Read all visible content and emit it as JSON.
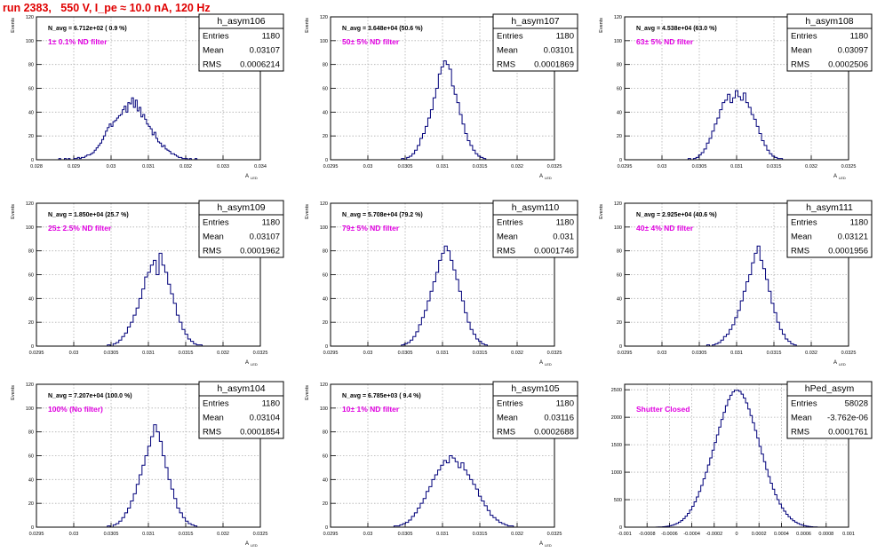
{
  "page_title": "run 2383,   550 V, I_pe ≈ 10.0 nA, 120 Hz",
  "colors": {
    "histogram": "#00007a",
    "annotation": "#e000e0",
    "title": "#e00000",
    "grid": "#b0b0b0"
  },
  "chart_data": [
    {
      "type": "bar",
      "name": "h_asym106",
      "stats": {
        "entries": "1180",
        "mean": "0.03107",
        "rms": "0.0006214"
      },
      "stat_labels": [
        "Entries",
        "Mean",
        "RMS"
      ],
      "navg": "N_avg = 6.712e+02 ( 0.9 %)",
      "filter": "1± 0.1% ND filter",
      "ylabel": "Events",
      "xlabel": "A",
      "xlabel_sub": "LED",
      "xlim": [
        0.028,
        0.034
      ],
      "ylim": [
        0,
        120
      ],
      "xticks": [
        "0.028",
        "0.029",
        "0.03",
        "0.031",
        "0.032",
        "0.033",
        "0.034"
      ],
      "yticks": [
        "0",
        "20",
        "40",
        "60",
        "80",
        "100",
        "120"
      ],
      "x_range": [
        0.0286,
        0.0326
      ],
      "bin_values": [
        1,
        0,
        0,
        1,
        0,
        1,
        0,
        0,
        1,
        1,
        2,
        1,
        2,
        2,
        3,
        4,
        4,
        5,
        6,
        8,
        10,
        12,
        14,
        17,
        20,
        24,
        27,
        30,
        28,
        32,
        33,
        35,
        37,
        38,
        42,
        45,
        40,
        48,
        47,
        52,
        44,
        50,
        41,
        44,
        36,
        38,
        34,
        30,
        28,
        26,
        21,
        23,
        18,
        15,
        14,
        11,
        12,
        9,
        8,
        7,
        5,
        5,
        4,
        3,
        2,
        2,
        1,
        1,
        1,
        0,
        1,
        0,
        0,
        1,
        0,
        0,
        0,
        0,
        0,
        0
      ]
    },
    {
      "type": "bar",
      "name": "h_asym107",
      "stats": {
        "entries": "1180",
        "mean": "0.03101",
        "rms": "0.0001869"
      },
      "stat_labels": [
        "Entries",
        "Mean",
        "RMS"
      ],
      "navg": "N_avg = 3.648e+04 (50.6 %)",
      "filter": "50± 5% ND filter",
      "ylabel": "Events",
      "xlabel": "A",
      "xlabel_sub": "LED",
      "xlim": [
        0.0295,
        0.0325
      ],
      "ylim": [
        0,
        120
      ],
      "xticks": [
        "0.0295",
        "0.03",
        "0.0305",
        "0.031",
        "0.0315",
        "0.032",
        "0.0325"
      ],
      "yticks": [
        "0",
        "20",
        "40",
        "60",
        "80",
        "100",
        "120"
      ],
      "x_range": [
        0.03045,
        0.03158
      ],
      "bin_values": [
        1,
        0,
        2,
        3,
        5,
        8,
        12,
        18,
        22,
        28,
        35,
        42,
        52,
        60,
        72,
        78,
        83,
        80,
        76,
        62,
        55,
        48,
        38,
        30,
        22,
        16,
        12,
        8,
        5,
        3,
        2,
        1
      ]
    },
    {
      "type": "bar",
      "name": "h_asym108",
      "stats": {
        "entries": "1180",
        "mean": "0.03097",
        "rms": "0.0002506"
      },
      "stat_labels": [
        "Entries",
        "Mean",
        "RMS"
      ],
      "navg": "N_avg = 4.538e+04 (63.0 %)",
      "filter": "63± 5% ND filter",
      "ylabel": "Events",
      "xlabel": "A",
      "xlabel_sub": "LED",
      "xlim": [
        0.0295,
        0.0325
      ],
      "ylim": [
        0,
        120
      ],
      "xticks": [
        "0.0295",
        "0.03",
        "0.0305",
        "0.031",
        "0.0315",
        "0.032",
        "0.0325"
      ],
      "yticks": [
        "0",
        "20",
        "40",
        "60",
        "80",
        "100",
        "120"
      ],
      "x_range": [
        0.03035,
        0.03165
      ],
      "bin_values": [
        1,
        0,
        1,
        2,
        4,
        6,
        9,
        14,
        18,
        24,
        30,
        35,
        42,
        48,
        50,
        55,
        48,
        52,
        58,
        53,
        50,
        56,
        48,
        44,
        38,
        34,
        28,
        22,
        16,
        12,
        8,
        5,
        3,
        2,
        1,
        1,
        0
      ]
    },
    {
      "type": "bar",
      "name": "h_asym109",
      "stats": {
        "entries": "1180",
        "mean": "0.03107",
        "rms": "0.0001962"
      },
      "stat_labels": [
        "Entries",
        "Mean",
        "RMS"
      ],
      "navg": "N_avg = 1.850e+04 (25.7 %)",
      "filter": "25± 2.5% ND filter",
      "ylabel": "Events",
      "xlabel": "A",
      "xlabel_sub": "LED",
      "xlim": [
        0.0295,
        0.0325
      ],
      "ylim": [
        0,
        120
      ],
      "xticks": [
        "0.0295",
        "0.03",
        "0.0305",
        "0.031",
        "0.0315",
        "0.032",
        "0.0325"
      ],
      "yticks": [
        "0",
        "20",
        "40",
        "60",
        "80",
        "100",
        "120"
      ],
      "x_range": [
        0.03045,
        0.03172
      ],
      "bin_values": [
        1,
        0,
        2,
        3,
        5,
        8,
        11,
        16,
        20,
        26,
        32,
        40,
        48,
        58,
        62,
        68,
        72,
        60,
        78,
        68,
        62,
        52,
        44,
        36,
        26,
        20,
        14,
        10,
        6,
        4,
        2,
        1,
        1
      ]
    },
    {
      "type": "bar",
      "name": "h_asym110",
      "stats": {
        "entries": "1180",
        "mean": "0.031",
        "rms": "0.0001746"
      },
      "stat_labels": [
        "Entries",
        "Mean",
        "RMS"
      ],
      "navg": "N_avg = 5.708e+04 (79.2 %)",
      "filter": "79± 5% ND filter",
      "ylabel": "Events",
      "xlabel": "A",
      "xlabel_sub": "LED",
      "xlim": [
        0.0295,
        0.0325
      ],
      "ylim": [
        0,
        120
      ],
      "xticks": [
        "0.0295",
        "0.03",
        "0.0305",
        "0.031",
        "0.0315",
        "0.032",
        "0.0325"
      ],
      "yticks": [
        "0",
        "20",
        "40",
        "60",
        "80",
        "100",
        "120"
      ],
      "x_range": [
        0.03045,
        0.0316
      ],
      "bin_values": [
        1,
        2,
        3,
        5,
        8,
        12,
        18,
        24,
        30,
        38,
        46,
        54,
        62,
        72,
        78,
        84,
        80,
        72,
        64,
        56,
        46,
        38,
        28,
        20,
        14,
        10,
        6,
        4,
        2,
        1
      ]
    },
    {
      "type": "bar",
      "name": "h_asym111",
      "stats": {
        "entries": "1180",
        "mean": "0.03121",
        "rms": "0.0001956"
      },
      "stat_labels": [
        "Entries",
        "Mean",
        "RMS"
      ],
      "navg": "N_avg = 2.925e+04 (40.6 %)",
      "filter": "40± 4% ND filter",
      "ylabel": "Events",
      "xlabel": "A",
      "xlabel_sub": "LED",
      "xlim": [
        0.0295,
        0.0325
      ],
      "ylim": [
        0,
        120
      ],
      "xticks": [
        "0.0295",
        "0.03",
        "0.0305",
        "0.031",
        "0.0315",
        "0.032",
        "0.0325"
      ],
      "yticks": [
        "0",
        "20",
        "40",
        "60",
        "80",
        "100",
        "120"
      ],
      "x_range": [
        0.0306,
        0.0318
      ],
      "bin_values": [
        1,
        0,
        1,
        2,
        3,
        5,
        8,
        10,
        14,
        18,
        24,
        30,
        38,
        46,
        54,
        60,
        70,
        78,
        84,
        72,
        65,
        56,
        46,
        36,
        28,
        20,
        14,
        10,
        6,
        4,
        2,
        1
      ]
    },
    {
      "type": "bar",
      "name": "h_asym104",
      "stats": {
        "entries": "1180",
        "mean": "0.03104",
        "rms": "0.0001854"
      },
      "stat_labels": [
        "Entries",
        "Mean",
        "RMS"
      ],
      "navg": "N_avg = 7.207e+04 (100.0 %)",
      "filter": "100% (No filter)",
      "ylabel": "Events",
      "xlabel": "A",
      "xlabel_sub": "LED",
      "xlim": [
        0.0295,
        0.0325
      ],
      "ylim": [
        0,
        120
      ],
      "xticks": [
        "0.0295",
        "0.03",
        "0.0305",
        "0.031",
        "0.0315",
        "0.032",
        "0.0325"
      ],
      "yticks": [
        "0",
        "20",
        "40",
        "60",
        "80",
        "100",
        "120"
      ],
      "x_range": [
        0.03045,
        0.03165
      ],
      "bin_values": [
        1,
        0,
        2,
        3,
        5,
        8,
        12,
        16,
        22,
        28,
        36,
        44,
        52,
        60,
        68,
        76,
        86,
        80,
        72,
        60,
        50,
        40,
        32,
        24,
        16,
        12,
        8,
        5,
        3,
        2,
        1
      ]
    },
    {
      "type": "bar",
      "name": "h_asym105",
      "stats": {
        "entries": "1180",
        "mean": "0.03116",
        "rms": "0.0002688"
      },
      "stat_labels": [
        "Entries",
        "Mean",
        "RMS"
      ],
      "navg": "N_avg = 6.785e+03 ( 9.4 %)",
      "filter": "10± 1% ND filter",
      "ylabel": "Events",
      "xlabel": "A",
      "xlabel_sub": "LED",
      "xlim": [
        0.0295,
        0.0325
      ],
      "ylim": [
        0,
        120
      ],
      "xticks": [
        "0.0295",
        "0.03",
        "0.0305",
        "0.031",
        "0.0315",
        "0.032",
        "0.0325"
      ],
      "yticks": [
        "0",
        "20",
        "40",
        "60",
        "80",
        "100",
        "120"
      ],
      "x_range": [
        0.03035,
        0.03195
      ],
      "bin_values": [
        1,
        1,
        2,
        3,
        4,
        6,
        9,
        12,
        16,
        20,
        24,
        30,
        34,
        40,
        44,
        48,
        52,
        56,
        54,
        60,
        58,
        55,
        50,
        54,
        48,
        44,
        40,
        36,
        32,
        26,
        22,
        18,
        14,
        10,
        8,
        6,
        4,
        3,
        2,
        1,
        1
      ]
    },
    {
      "type": "bar",
      "name": "hPed_asym",
      "stats": {
        "entries": "58028",
        "mean": "-3.762e-06",
        "rms": "0.0001761"
      },
      "stat_labels": [
        "Entries",
        "Mean",
        "RMS"
      ],
      "navg": "",
      "filter": "Shutter Closed",
      "ylabel": "",
      "xlabel": "",
      "xlabel_sub": "",
      "xlim": [
        -0.001,
        0.001
      ],
      "ylim": [
        0,
        2600
      ],
      "xticks": [
        "-0.001",
        "-0.0008",
        "-0.0006",
        "-0.0004",
        "-0.0002",
        "0",
        "0.0002",
        "0.0004",
        "0.0006",
        "0.0008",
        "0.001"
      ],
      "yticks": [
        "0",
        "500",
        "1000",
        "1500",
        "2000",
        "2500"
      ],
      "x_range": [
        -0.00072,
        0.00072
      ],
      "bin_values": [
        2,
        3,
        5,
        8,
        12,
        18,
        26,
        36,
        50,
        68,
        90,
        120,
        155,
        200,
        250,
        310,
        380,
        460,
        550,
        650,
        760,
        880,
        1000,
        1130,
        1260,
        1400,
        1540,
        1680,
        1820,
        1960,
        2090,
        2210,
        2320,
        2400,
        2460,
        2490,
        2490,
        2470,
        2420,
        2350,
        2260,
        2150,
        2030,
        1900,
        1760,
        1620,
        1470,
        1330,
        1190,
        1050,
        920,
        800,
        690,
        590,
        500,
        420,
        350,
        290,
        235,
        190,
        150,
        118,
        90,
        68,
        50,
        36,
        26,
        18,
        12,
        8,
        5,
        3
      ]
    }
  ]
}
